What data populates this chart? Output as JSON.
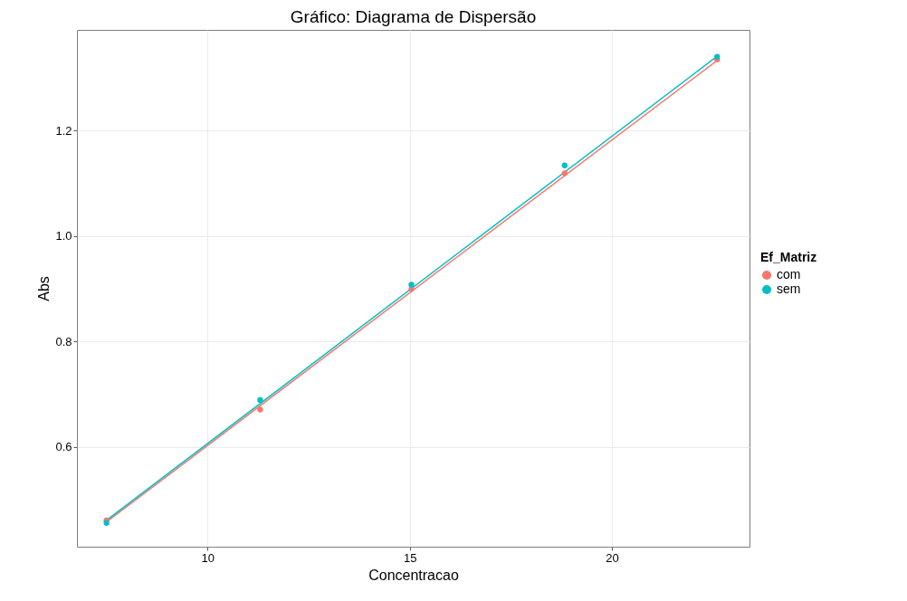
{
  "chart_data": {
    "type": "scatter",
    "title": "Gráfico: Diagrama de Dispersão",
    "xlabel": "Concentracao",
    "ylabel": "Abs",
    "legend_title": "Ef_Matriz",
    "series": [
      {
        "name": "com",
        "color": "#f8766d",
        "marker": "circle",
        "x": [
          7.5,
          11.3,
          15.04,
          18.83,
          22.6
        ],
        "values": [
          0.461,
          0.671,
          0.9,
          1.119,
          1.335
        ]
      },
      {
        "name": "sem",
        "color": "#00bfc4",
        "marker": "circle",
        "x": [
          7.5,
          11.3,
          15.04,
          18.83,
          22.6
        ],
        "values": [
          0.456,
          0.689,
          0.908,
          1.134,
          1.34
        ]
      },
      {
        "color": "#f8766d",
        "type": "line",
        "marker": "none",
        "x": [
          7.5,
          22.6
        ],
        "values": [
          0.458,
          1.333
        ]
      },
      {
        "color": "#00bfc4",
        "type": "line",
        "marker": "none",
        "x": [
          7.5,
          22.6
        ],
        "values": [
          0.461,
          1.341
        ]
      }
    ],
    "xlim": [
      6.77,
      23.4
    ],
    "xticks": [
      10,
      15,
      20
    ],
    "ylim": [
      0.411,
      1.391
    ],
    "yticks": [
      {
        "value": 0.6,
        "label": "0.6"
      },
      {
        "value": 0.8,
        "label": "0.8"
      },
      {
        "value": 1.0,
        "label": "1.0"
      },
      {
        "value": 1.2,
        "label": "1.2"
      }
    ],
    "grid": true,
    "legend": "right",
    "line_style": "solid"
  }
}
